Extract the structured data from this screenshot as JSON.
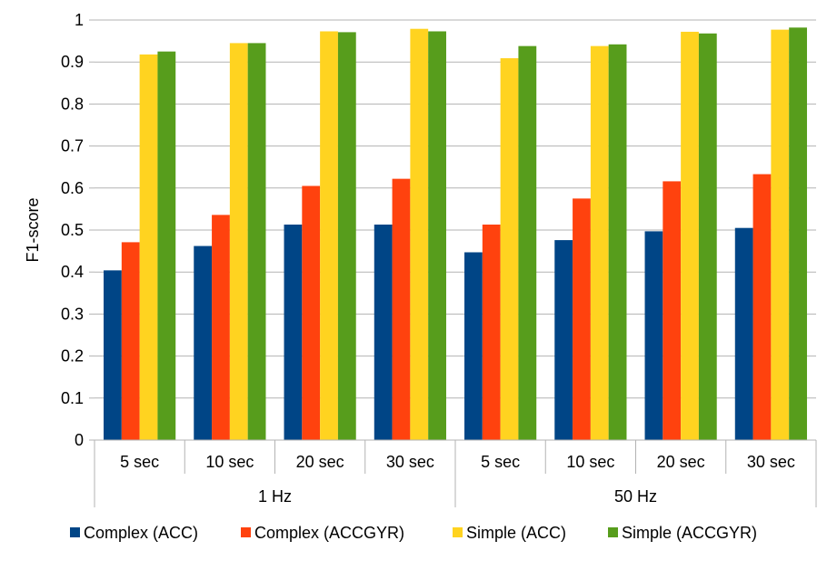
{
  "chart_data": {
    "type": "bar",
    "ylabel": "F1-score",
    "ylim": [
      0,
      1
    ],
    "yticks": [
      "0",
      "0.1",
      "0.2",
      "0.3",
      "0.4",
      "0.5",
      "0.6",
      "0.7",
      "0.8",
      "0.9",
      "1"
    ],
    "grid": true,
    "legend": "bottom",
    "groups": [
      {
        "label": "1 Hz",
        "categories": [
          "5 sec",
          "10 sec",
          "20 sec",
          "30 sec"
        ]
      },
      {
        "label": "50 Hz",
        "categories": [
          "5 sec",
          "10 sec",
          "20 sec",
          "30 sec"
        ]
      }
    ],
    "series": [
      {
        "name": "Complex (ACC)",
        "color": "#004586",
        "values": [
          0.404,
          0.462,
          0.513,
          0.513,
          0.447,
          0.476,
          0.497,
          0.505
        ]
      },
      {
        "name": "Complex (ACCGYR)",
        "color": "#ff420e",
        "values": [
          0.471,
          0.536,
          0.605,
          0.622,
          0.513,
          0.575,
          0.616,
          0.633
        ]
      },
      {
        "name": "Simple (ACC)",
        "color": "#ffd320",
        "values": [
          0.918,
          0.945,
          0.973,
          0.979,
          0.909,
          0.938,
          0.972,
          0.977
        ]
      },
      {
        "name": "Simple (ACCGYR)",
        "color": "#579d1c",
        "values": [
          0.925,
          0.945,
          0.971,
          0.973,
          0.938,
          0.942,
          0.968,
          0.982
        ]
      }
    ]
  }
}
